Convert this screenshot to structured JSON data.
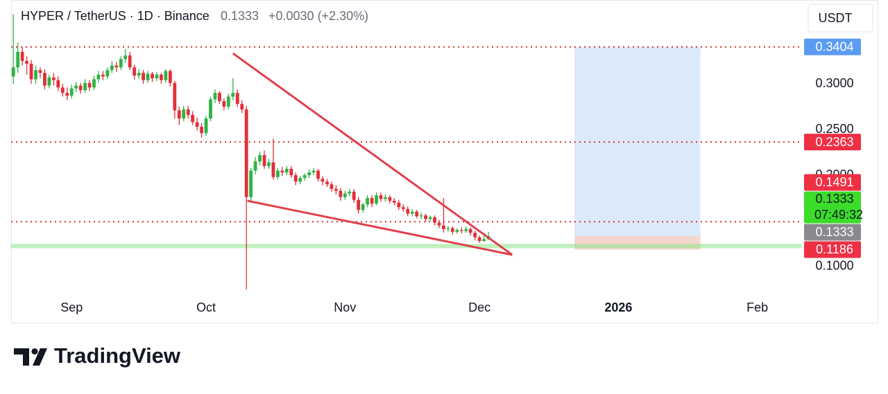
{
  "header": {
    "symbol": "HYPER / TetherUS · 1D · Binance",
    "price": "0.1333",
    "change": "+0.0030 (+2.30%)",
    "currency": "USDT"
  },
  "footer": {
    "brand": "TradingView"
  },
  "chart_data": {
    "type": "candlestick",
    "up_color": "#2fb344",
    "down_color": "#e0303a",
    "open": [
      0.308,
      0.318,
      0.335,
      0.325,
      0.322,
      0.305,
      0.315,
      0.312,
      0.298,
      0.307,
      0.304,
      0.296,
      0.29,
      0.287,
      0.295,
      0.298,
      0.293,
      0.301,
      0.296,
      0.305,
      0.31,
      0.308,
      0.315,
      0.32,
      0.318,
      0.327,
      0.331,
      0.318,
      0.309,
      0.312,
      0.304,
      0.311,
      0.306,
      0.31,
      0.304,
      0.314,
      0.301,
      0.271,
      0.262,
      0.272,
      0.266,
      0.258,
      0.253,
      0.246,
      0.262,
      0.283,
      0.29,
      0.281,
      0.275,
      0.286,
      0.29,
      0.278,
      0.272,
      0.176,
      0.205,
      0.215,
      0.222,
      0.21,
      0.214,
      0.198,
      0.205,
      0.203,
      0.207,
      0.2,
      0.193,
      0.197,
      0.2,
      0.203,
      0.205,
      0.196,
      0.193,
      0.19,
      0.185,
      0.183,
      0.176,
      0.18,
      0.182,
      0.173,
      0.162,
      0.168,
      0.175,
      0.169,
      0.178,
      0.174,
      0.176,
      0.172,
      0.17,
      0.165,
      0.163,
      0.158,
      0.16,
      0.155,
      0.156,
      0.152,
      0.154,
      0.148,
      0.145,
      0.141,
      0.142,
      0.138,
      0.14,
      0.139,
      0.141,
      0.137,
      0.132,
      0.128,
      0.13
    ],
    "high": [
      0.376,
      0.345,
      0.34,
      0.33,
      0.326,
      0.32,
      0.318,
      0.316,
      0.31,
      0.312,
      0.308,
      0.3,
      0.296,
      0.299,
      0.302,
      0.301,
      0.305,
      0.304,
      0.309,
      0.314,
      0.314,
      0.318,
      0.325,
      0.324,
      0.33,
      0.338,
      0.335,
      0.321,
      0.316,
      0.315,
      0.314,
      0.313,
      0.313,
      0.312,
      0.316,
      0.316,
      0.303,
      0.275,
      0.276,
      0.276,
      0.27,
      0.263,
      0.257,
      0.265,
      0.286,
      0.294,
      0.292,
      0.284,
      0.289,
      0.306,
      0.294,
      0.282,
      0.276,
      0.208,
      0.22,
      0.226,
      0.227,
      0.218,
      0.24,
      0.208,
      0.209,
      0.21,
      0.21,
      0.203,
      0.199,
      0.202,
      0.206,
      0.208,
      0.207,
      0.199,
      0.196,
      0.193,
      0.189,
      0.186,
      0.183,
      0.185,
      0.185,
      0.176,
      0.17,
      0.178,
      0.178,
      0.181,
      0.181,
      0.179,
      0.178,
      0.175,
      0.173,
      0.168,
      0.166,
      0.163,
      0.162,
      0.159,
      0.158,
      0.156,
      0.156,
      0.151,
      0.175,
      0.144,
      0.144,
      0.142,
      0.143,
      0.144,
      0.143,
      0.139,
      0.134,
      0.137,
      0.138
    ],
    "low": [
      0.3,
      0.312,
      0.32,
      0.31,
      0.3,
      0.3,
      0.306,
      0.294,
      0.295,
      0.298,
      0.292,
      0.286,
      0.282,
      0.284,
      0.291,
      0.289,
      0.29,
      0.292,
      0.293,
      0.301,
      0.304,
      0.305,
      0.312,
      0.313,
      0.315,
      0.323,
      0.315,
      0.305,
      0.305,
      0.3,
      0.301,
      0.302,
      0.303,
      0.3,
      0.301,
      0.297,
      0.262,
      0.255,
      0.259,
      0.262,
      0.255,
      0.249,
      0.241,
      0.243,
      0.259,
      0.279,
      0.278,
      0.271,
      0.272,
      0.282,
      0.275,
      0.268,
      0.075,
      0.172,
      0.201,
      0.211,
      0.207,
      0.207,
      0.195,
      0.195,
      0.199,
      0.2,
      0.197,
      0.189,
      0.19,
      0.194,
      0.197,
      0.2,
      0.193,
      0.189,
      0.187,
      0.182,
      0.179,
      0.172,
      0.173,
      0.177,
      0.17,
      0.158,
      0.159,
      0.165,
      0.165,
      0.167,
      0.171,
      0.171,
      0.169,
      0.167,
      0.162,
      0.16,
      0.155,
      0.155,
      0.153,
      0.152,
      0.149,
      0.15,
      0.145,
      0.142,
      0.137,
      0.138,
      0.135,
      0.136,
      0.136,
      0.137,
      0.134,
      0.129,
      0.126,
      0.127,
      0.129
    ],
    "close": [
      0.318,
      0.335,
      0.325,
      0.322,
      0.305,
      0.315,
      0.312,
      0.298,
      0.307,
      0.304,
      0.296,
      0.29,
      0.287,
      0.295,
      0.298,
      0.293,
      0.301,
      0.296,
      0.305,
      0.31,
      0.308,
      0.315,
      0.32,
      0.318,
      0.327,
      0.331,
      0.318,
      0.309,
      0.312,
      0.304,
      0.311,
      0.306,
      0.31,
      0.304,
      0.314,
      0.301,
      0.271,
      0.262,
      0.272,
      0.266,
      0.258,
      0.253,
      0.246,
      0.262,
      0.283,
      0.29,
      0.281,
      0.275,
      0.286,
      0.29,
      0.278,
      0.272,
      0.176,
      0.205,
      0.215,
      0.222,
      0.21,
      0.214,
      0.198,
      0.205,
      0.203,
      0.207,
      0.2,
      0.193,
      0.197,
      0.2,
      0.203,
      0.205,
      0.196,
      0.193,
      0.19,
      0.185,
      0.183,
      0.176,
      0.18,
      0.182,
      0.173,
      0.162,
      0.168,
      0.175,
      0.169,
      0.178,
      0.174,
      0.176,
      0.172,
      0.17,
      0.165,
      0.163,
      0.158,
      0.16,
      0.155,
      0.156,
      0.152,
      0.154,
      0.148,
      0.145,
      0.141,
      0.142,
      0.138,
      0.14,
      0.139,
      0.141,
      0.137,
      0.132,
      0.128,
      0.13,
      0.1333
    ],
    "xlim": [
      -0.5,
      175.8
    ],
    "xticks": [
      {
        "value": 13,
        "label": "Sep"
      },
      {
        "value": 43,
        "label": "Oct"
      },
      {
        "value": 74,
        "label": "Nov"
      },
      {
        "value": 104,
        "label": "Dec"
      },
      {
        "value": 135,
        "label": "2026"
      },
      {
        "value": 166,
        "label": "Feb"
      }
    ],
    "ylim": [
      0.0659,
      0.3917
    ],
    "yticks": [
      {
        "value": 0.1,
        "label": "0.1000"
      },
      {
        "value": 0.2,
        "label": "0.2000"
      },
      {
        "value": 0.25,
        "label": "0.2500"
      },
      {
        "value": 0.3,
        "label": "0.3000"
      }
    ],
    "levels": [
      {
        "value": 0.3404,
        "color": "#d32f2f"
      },
      {
        "value": 0.2363,
        "color": "#d32f2f"
      },
      {
        "value": 0.1491,
        "color": "#d32f2f"
      }
    ],
    "price_tags": [
      {
        "value": 0.3404,
        "label": "0.3404",
        "color": "#5b9cf2"
      },
      {
        "value": 0.2363,
        "label": "0.2363",
        "color": "#ee3044"
      },
      {
        "value": 0.1491,
        "label": "0.1491",
        "color": "#ee3044"
      },
      {
        "value": 0.1333,
        "label": "0.1333",
        "countdown": "07:49:32",
        "color": "#3bdc2a"
      },
      {
        "value": 0.1333,
        "label": "0.1333",
        "color": "#8a8a8e"
      },
      {
        "value": 0.1186,
        "label": "0.1186",
        "color": "#ee3044"
      }
    ],
    "support_zone": {
      "from": 0.1205,
      "to": 0.1245,
      "color": "#8fe58a"
    },
    "trendlines": {
      "color": "#e0404a",
      "lines": [
        {
          "x": [
            49,
            111.3
          ],
          "y": [
            0.3333,
            0.1129
          ]
        },
        {
          "x": [
            52.2,
            111.3
          ],
          "y": [
            0.172,
            0.1129
          ]
        }
      ]
    },
    "position": {
      "x": [
        125.2,
        153.3
      ],
      "target": 0.3404,
      "entry": 0.1333,
      "stop": 0.1186,
      "target_color": "#dce9fb",
      "stop_color": "#f2cfc5"
    }
  }
}
